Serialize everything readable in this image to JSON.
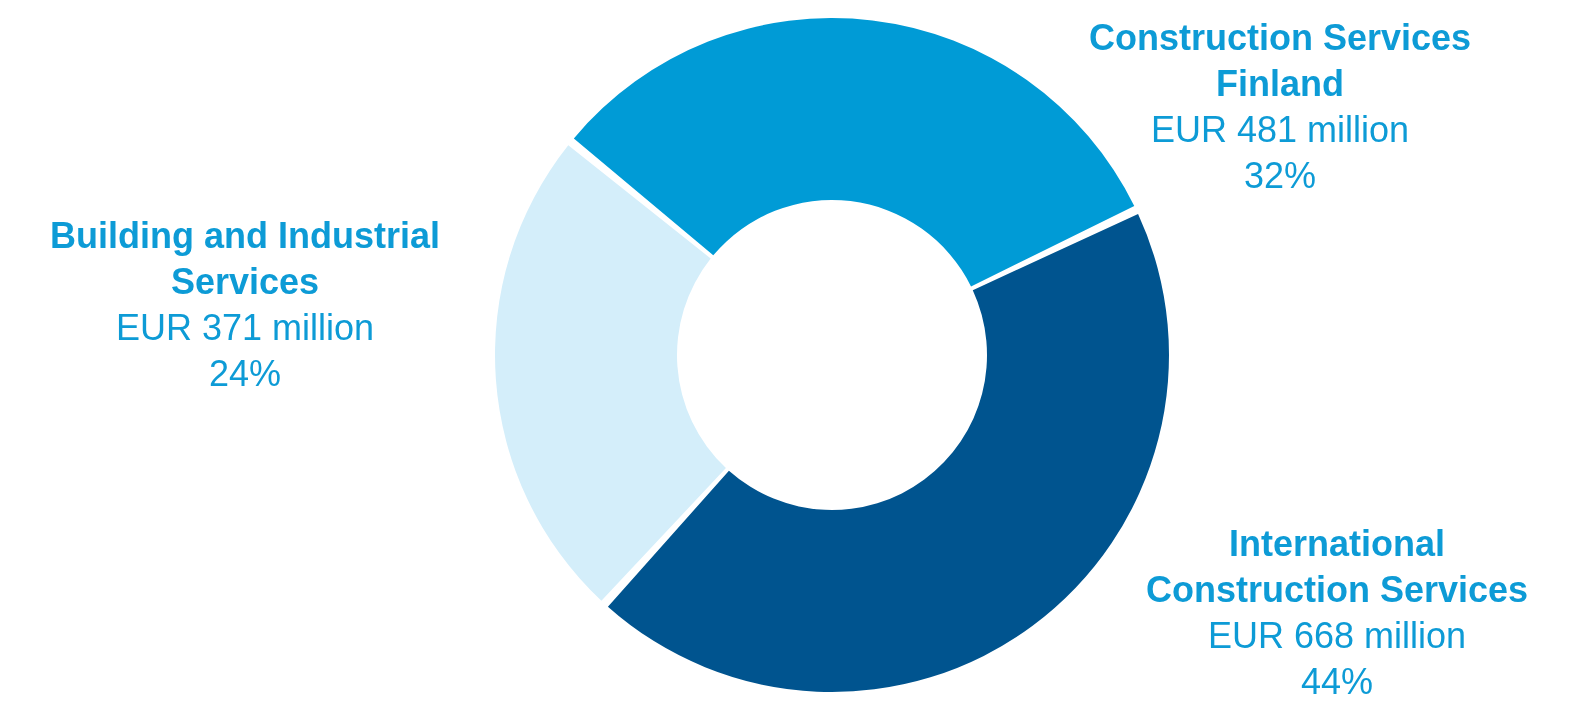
{
  "chart_data": {
    "type": "donut",
    "categories": [
      "Construction Services Finland",
      "International Construction Services",
      "Building and Industrial Services"
    ],
    "values": [
      32,
      44,
      24
    ],
    "colors": [
      "#009bd6",
      "#00548f",
      "#d4eefa"
    ],
    "value_labels": [
      "32%",
      "44%",
      "24%"
    ],
    "annotations": [
      "EUR 481 million",
      "EUR 668 million",
      "EUR 371 million"
    ],
    "legend": false
  }
}
